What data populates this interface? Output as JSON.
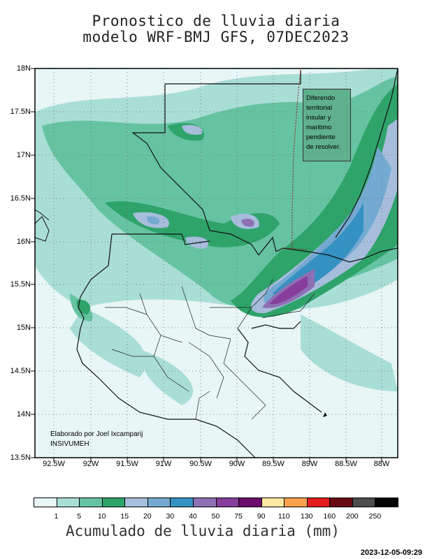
{
  "title_line1": "Pronostico de lluvia diaria",
  "title_line2": "modelo WRF-BMJ GFS,  07DEC2023",
  "y_ticks": [
    "18N",
    "17.5N",
    "17N",
    "16.5N",
    "16N",
    "15.5N",
    "15N",
    "14.5N",
    "14N",
    "13.5N"
  ],
  "x_ticks": [
    "92.5W",
    "92W",
    "91.5W",
    "91W",
    "90.5W",
    "90W",
    "89.5W",
    "89W",
    "88.5W",
    "88W"
  ],
  "note_lines": [
    "Diferendo",
    "territorial",
    "insular y",
    "maritimo",
    "pendiente",
    "de resolver."
  ],
  "credit_line1": "Elaborado  por Joel Ixcamparij",
  "credit_line2": "INSIVUMEH",
  "colorbar": {
    "colors": [
      "#e8f6f6",
      "#a9ded7",
      "#66c3a2",
      "#2ea36a",
      "#a6bddc",
      "#74aad2",
      "#3491c2",
      "#8e70b5",
      "#873d9c",
      "#6c0c6c",
      "#fde9a1",
      "#fba24c",
      "#e41d1d",
      "#680c14",
      "#4d4d4d",
      "#050505"
    ],
    "labels": [
      "1",
      "5",
      "10",
      "15",
      "20",
      "30",
      "40",
      "50",
      "75",
      "90",
      "110",
      "130",
      "160",
      "200",
      "250"
    ]
  },
  "colorbar_unit": "Acumulado de lluvia diaria (mm)",
  "timestamp": "2023-12-05-09:29"
}
